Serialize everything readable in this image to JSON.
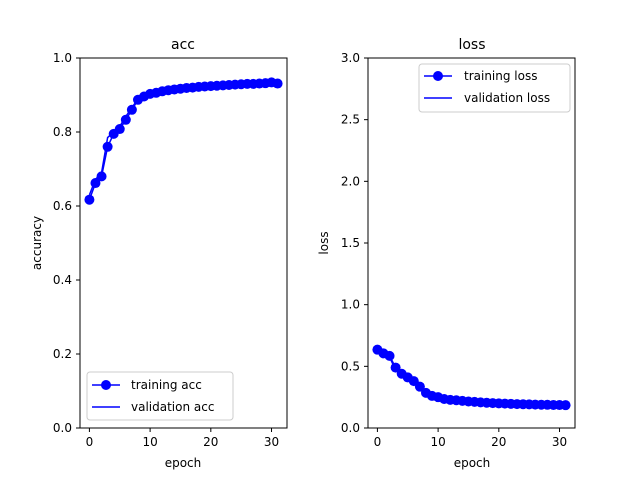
{
  "colors": {
    "series": "#0000ff",
    "axis": "#000000",
    "legend_border": "#cccccc"
  },
  "chart_data": [
    {
      "type": "line",
      "title": "acc",
      "xlabel": "epoch",
      "ylabel": "accuracy",
      "xlim": [
        -1.55,
        32.55
      ],
      "ylim": [
        0.0,
        1.0
      ],
      "xticks": [
        0,
        10,
        20,
        30
      ],
      "yticks": [
        0.0,
        0.2,
        0.4,
        0.6,
        0.8,
        1.0
      ],
      "xtick_labels": [
        "0",
        "10",
        "20",
        "30"
      ],
      "ytick_labels": [
        "0.0",
        "0.2",
        "0.4",
        "0.6",
        "0.8",
        "1.0"
      ],
      "legend_position": "lower-left",
      "series": [
        {
          "name": "training acc",
          "marker": "circle",
          "x": [
            0,
            1,
            2,
            3,
            4,
            5,
            6,
            7,
            8,
            9,
            10,
            11,
            12,
            13,
            14,
            15,
            16,
            17,
            18,
            19,
            20,
            21,
            22,
            23,
            24,
            25,
            26,
            27,
            28,
            29,
            30,
            31
          ],
          "values": [
            0.617,
            0.662,
            0.68,
            0.76,
            0.795,
            0.808,
            0.833,
            0.86,
            0.887,
            0.896,
            0.903,
            0.906,
            0.91,
            0.913,
            0.915,
            0.917,
            0.919,
            0.92,
            0.922,
            0.923,
            0.924,
            0.925,
            0.926,
            0.927,
            0.928,
            0.929,
            0.93,
            0.93,
            0.931,
            0.932,
            0.934,
            0.931
          ]
        },
        {
          "name": "validation acc",
          "marker": "none",
          "x": [
            0,
            1,
            2,
            3,
            4,
            5,
            6,
            7,
            8,
            9,
            10,
            11,
            12,
            13,
            14,
            15,
            16,
            17,
            18,
            19,
            20,
            21,
            22,
            23,
            24,
            25,
            26,
            27,
            28,
            29,
            30,
            31
          ],
          "values": [
            0.63,
            0.672,
            0.69,
            0.785,
            0.8,
            0.815,
            0.842,
            0.866,
            0.889,
            0.898,
            0.904,
            0.908,
            0.911,
            0.914,
            0.916,
            0.918,
            0.92,
            0.921,
            0.922,
            0.924,
            0.925,
            0.926,
            0.927,
            0.928,
            0.929,
            0.93,
            0.931,
            0.931,
            0.932,
            0.933,
            0.934,
            0.932
          ]
        }
      ]
    },
    {
      "type": "line",
      "title": "loss",
      "xlabel": "epoch",
      "ylabel": "loss",
      "xlim": [
        -1.55,
        32.55
      ],
      "ylim": [
        0.0,
        3.0
      ],
      "xticks": [
        0,
        10,
        20,
        30
      ],
      "yticks": [
        0.0,
        0.5,
        1.0,
        1.5,
        2.0,
        2.5,
        3.0
      ],
      "xtick_labels": [
        "0",
        "10",
        "20",
        "30"
      ],
      "ytick_labels": [
        "0.0",
        "0.5",
        "1.0",
        "1.5",
        "2.0",
        "2.5",
        "3.0"
      ],
      "legend_position": "upper-right",
      "series": [
        {
          "name": "training loss",
          "marker": "circle",
          "x": [
            0,
            1,
            2,
            3,
            4,
            5,
            6,
            7,
            8,
            9,
            10,
            11,
            12,
            13,
            14,
            15,
            16,
            17,
            18,
            19,
            20,
            21,
            22,
            23,
            24,
            25,
            26,
            27,
            28,
            29,
            30,
            31
          ],
          "values": [
            0.635,
            0.605,
            0.585,
            0.49,
            0.44,
            0.41,
            0.38,
            0.335,
            0.285,
            0.26,
            0.25,
            0.235,
            0.228,
            0.225,
            0.22,
            0.215,
            0.212,
            0.208,
            0.205,
            0.202,
            0.2,
            0.198,
            0.196,
            0.194,
            0.193,
            0.192,
            0.19,
            0.189,
            0.188,
            0.187,
            0.186,
            0.185
          ]
        },
        {
          "name": "validation loss",
          "marker": "none",
          "x": [
            0,
            1,
            2,
            3,
            4,
            5,
            6,
            7,
            8,
            9,
            10,
            11,
            12,
            13,
            14,
            15,
            16,
            17,
            18,
            19,
            20,
            21,
            22,
            23,
            24,
            25,
            26,
            27,
            28,
            29,
            30,
            31
          ],
          "values": [
            0.62,
            0.595,
            0.575,
            0.47,
            0.43,
            0.4,
            0.37,
            0.33,
            0.282,
            0.258,
            0.246,
            0.233,
            0.226,
            0.223,
            0.218,
            0.213,
            0.21,
            0.206,
            0.203,
            0.2,
            0.198,
            0.196,
            0.215,
            0.193,
            0.191,
            0.19,
            0.188,
            0.187,
            0.186,
            0.185,
            0.184,
            0.19
          ]
        }
      ]
    }
  ]
}
